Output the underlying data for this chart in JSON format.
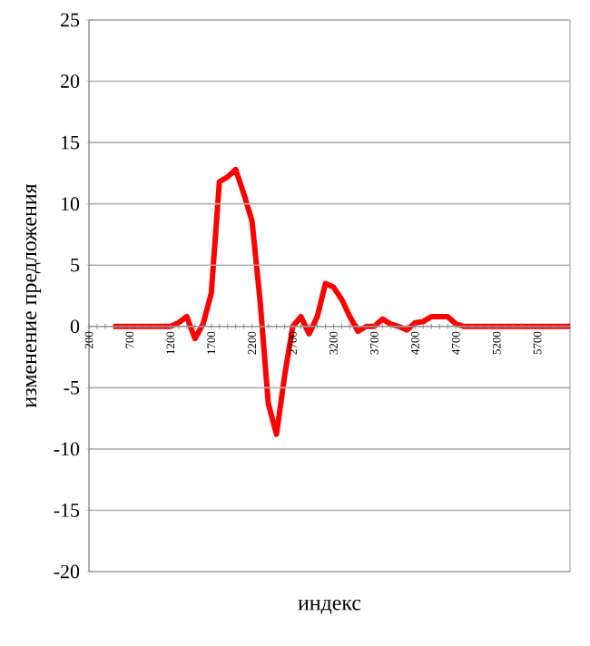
{
  "chart_data": {
    "type": "line",
    "xlabel": "индекс",
    "ylabel": "изменение предложения",
    "categories": [
      "200",
      null,
      null,
      null,
      null,
      "700",
      null,
      null,
      null,
      null,
      "1200",
      null,
      null,
      null,
      null,
      "1700",
      null,
      null,
      null,
      null,
      "2200",
      null,
      null,
      null,
      null,
      "2700",
      null,
      null,
      null,
      null,
      "3200",
      null,
      null,
      null,
      null,
      "3700",
      null,
      null,
      null,
      null,
      "4200",
      null,
      null,
      null,
      null,
      "4700",
      null,
      null,
      null,
      null,
      "5200",
      null,
      null,
      null,
      null,
      "5700",
      null,
      null,
      null,
      null
    ],
    "series": [
      {
        "color": "#ff0000",
        "values": [
          null,
          null,
          null,
          0,
          0,
          0,
          0,
          0,
          0,
          0,
          0,
          0.3,
          0.8,
          -1,
          0.2,
          2.7,
          11.8,
          12.2,
          12.8,
          10.8,
          8.6,
          2,
          -6.3,
          -8.8,
          -4,
          0,
          0.8,
          -0.6,
          0.8,
          3.5,
          3.2,
          2.2,
          0.8,
          -0.4,
          0,
          0,
          0.6,
          0.2,
          0,
          -0.3,
          0.3,
          0.4,
          0.8,
          0.8,
          0.8,
          0.2,
          0,
          0,
          0,
          0,
          0,
          0,
          0,
          0,
          0,
          0,
          0,
          0,
          0,
          0
        ]
      }
    ],
    "ylim": [
      -20,
      25
    ],
    "yticks": [
      -20,
      -15,
      -10,
      -5,
      0,
      5,
      10,
      15,
      20,
      25
    ],
    "grid": "y",
    "marker": "none",
    "line_style": "solid"
  }
}
